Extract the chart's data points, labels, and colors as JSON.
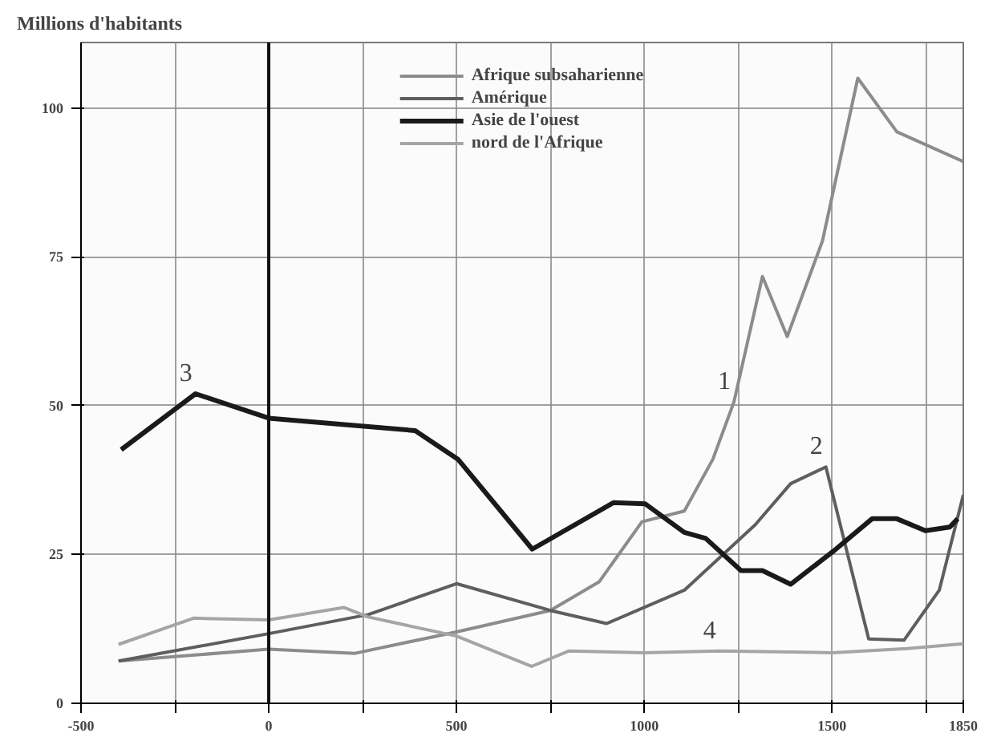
{
  "chart_data": {
    "type": "line",
    "ylabel": "Millions d'habitants",
    "xlim": [
      -500,
      1850
    ],
    "ylim": [
      0,
      111
    ],
    "xticks": [
      -500,
      {
        "value": -250,
        "label": null
      },
      0,
      {
        "value": 250,
        "label": null
      },
      500,
      {
        "value": 750,
        "label": null
      },
      1000,
      {
        "value": 1250,
        "label": null
      },
      1500,
      {
        "value": 1750,
        "label": null
      },
      1850
    ],
    "yticks": [
      0,
      25,
      50,
      75,
      100
    ],
    "grid": true,
    "legend": "top",
    "marker": "none",
    "line_style": "solid",
    "ref_lines": [
      {
        "axis": "x",
        "value": 0,
        "color": "#111111"
      }
    ],
    "series": [
      {
        "name": "Afrique subsaharienne",
        "color": "#8c8c8c",
        "x": [
          -400,
          0,
          230,
          500,
          750,
          880,
          994,
          1107,
          1183,
          1239,
          1315,
          1381,
          1475,
          1569,
          1673,
          1850
        ],
        "values": [
          7.1,
          9.1,
          8.4,
          12,
          15.6,
          20.4,
          30.5,
          32.3,
          41,
          50.6,
          71.7,
          61.6,
          77.7,
          105,
          96,
          91
        ]
      },
      {
        "name": "Amérique",
        "color": "#5e5e5e",
        "x": [
          -400,
          0,
          265,
          500,
          750,
          900,
          1107,
          1296,
          1390,
          1484,
          1598,
          1692,
          1786,
          1850
        ],
        "values": [
          7.1,
          11.7,
          14.9,
          20.1,
          15.6,
          13.4,
          19,
          30,
          36.9,
          39.7,
          10.8,
          10.6,
          19,
          35
        ]
      },
      {
        "name": "Asie de l'ouest",
        "color": "#1a1a1a",
        "x": [
          -393,
          -195,
          0,
          390,
          504,
          702,
          918,
          1003,
          1107,
          1164,
          1258,
          1315,
          1390,
          1503,
          1607,
          1673,
          1749,
          1814,
          1835
        ],
        "values": [
          42.6,
          52,
          47.9,
          45.8,
          41,
          25.9,
          33.7,
          33.5,
          28.7,
          27.7,
          22.3,
          22.3,
          20,
          25.5,
          31,
          31,
          29,
          29.6,
          31
        ]
      },
      {
        "name": "nord de l'Afrique",
        "color": "#a5a5a5",
        "x": [
          -400,
          -200,
          0,
          200,
          265,
          500,
          700,
          800,
          1000,
          1200,
          1500,
          1700,
          1850
        ],
        "values": [
          9.9,
          14.3,
          14,
          16.1,
          14.5,
          11.3,
          6.2,
          8.8,
          8.5,
          8.8,
          8.5,
          9.2,
          10
        ]
      }
    ],
    "annotations": [
      {
        "text": "3",
        "x": -195,
        "y": 52
      },
      {
        "text": "1",
        "x": 1239,
        "y": 50.6
      },
      {
        "text": "2",
        "x": 1484,
        "y": 39.7
      },
      {
        "text": "4",
        "x": 1200,
        "y": 8.8
      }
    ]
  }
}
